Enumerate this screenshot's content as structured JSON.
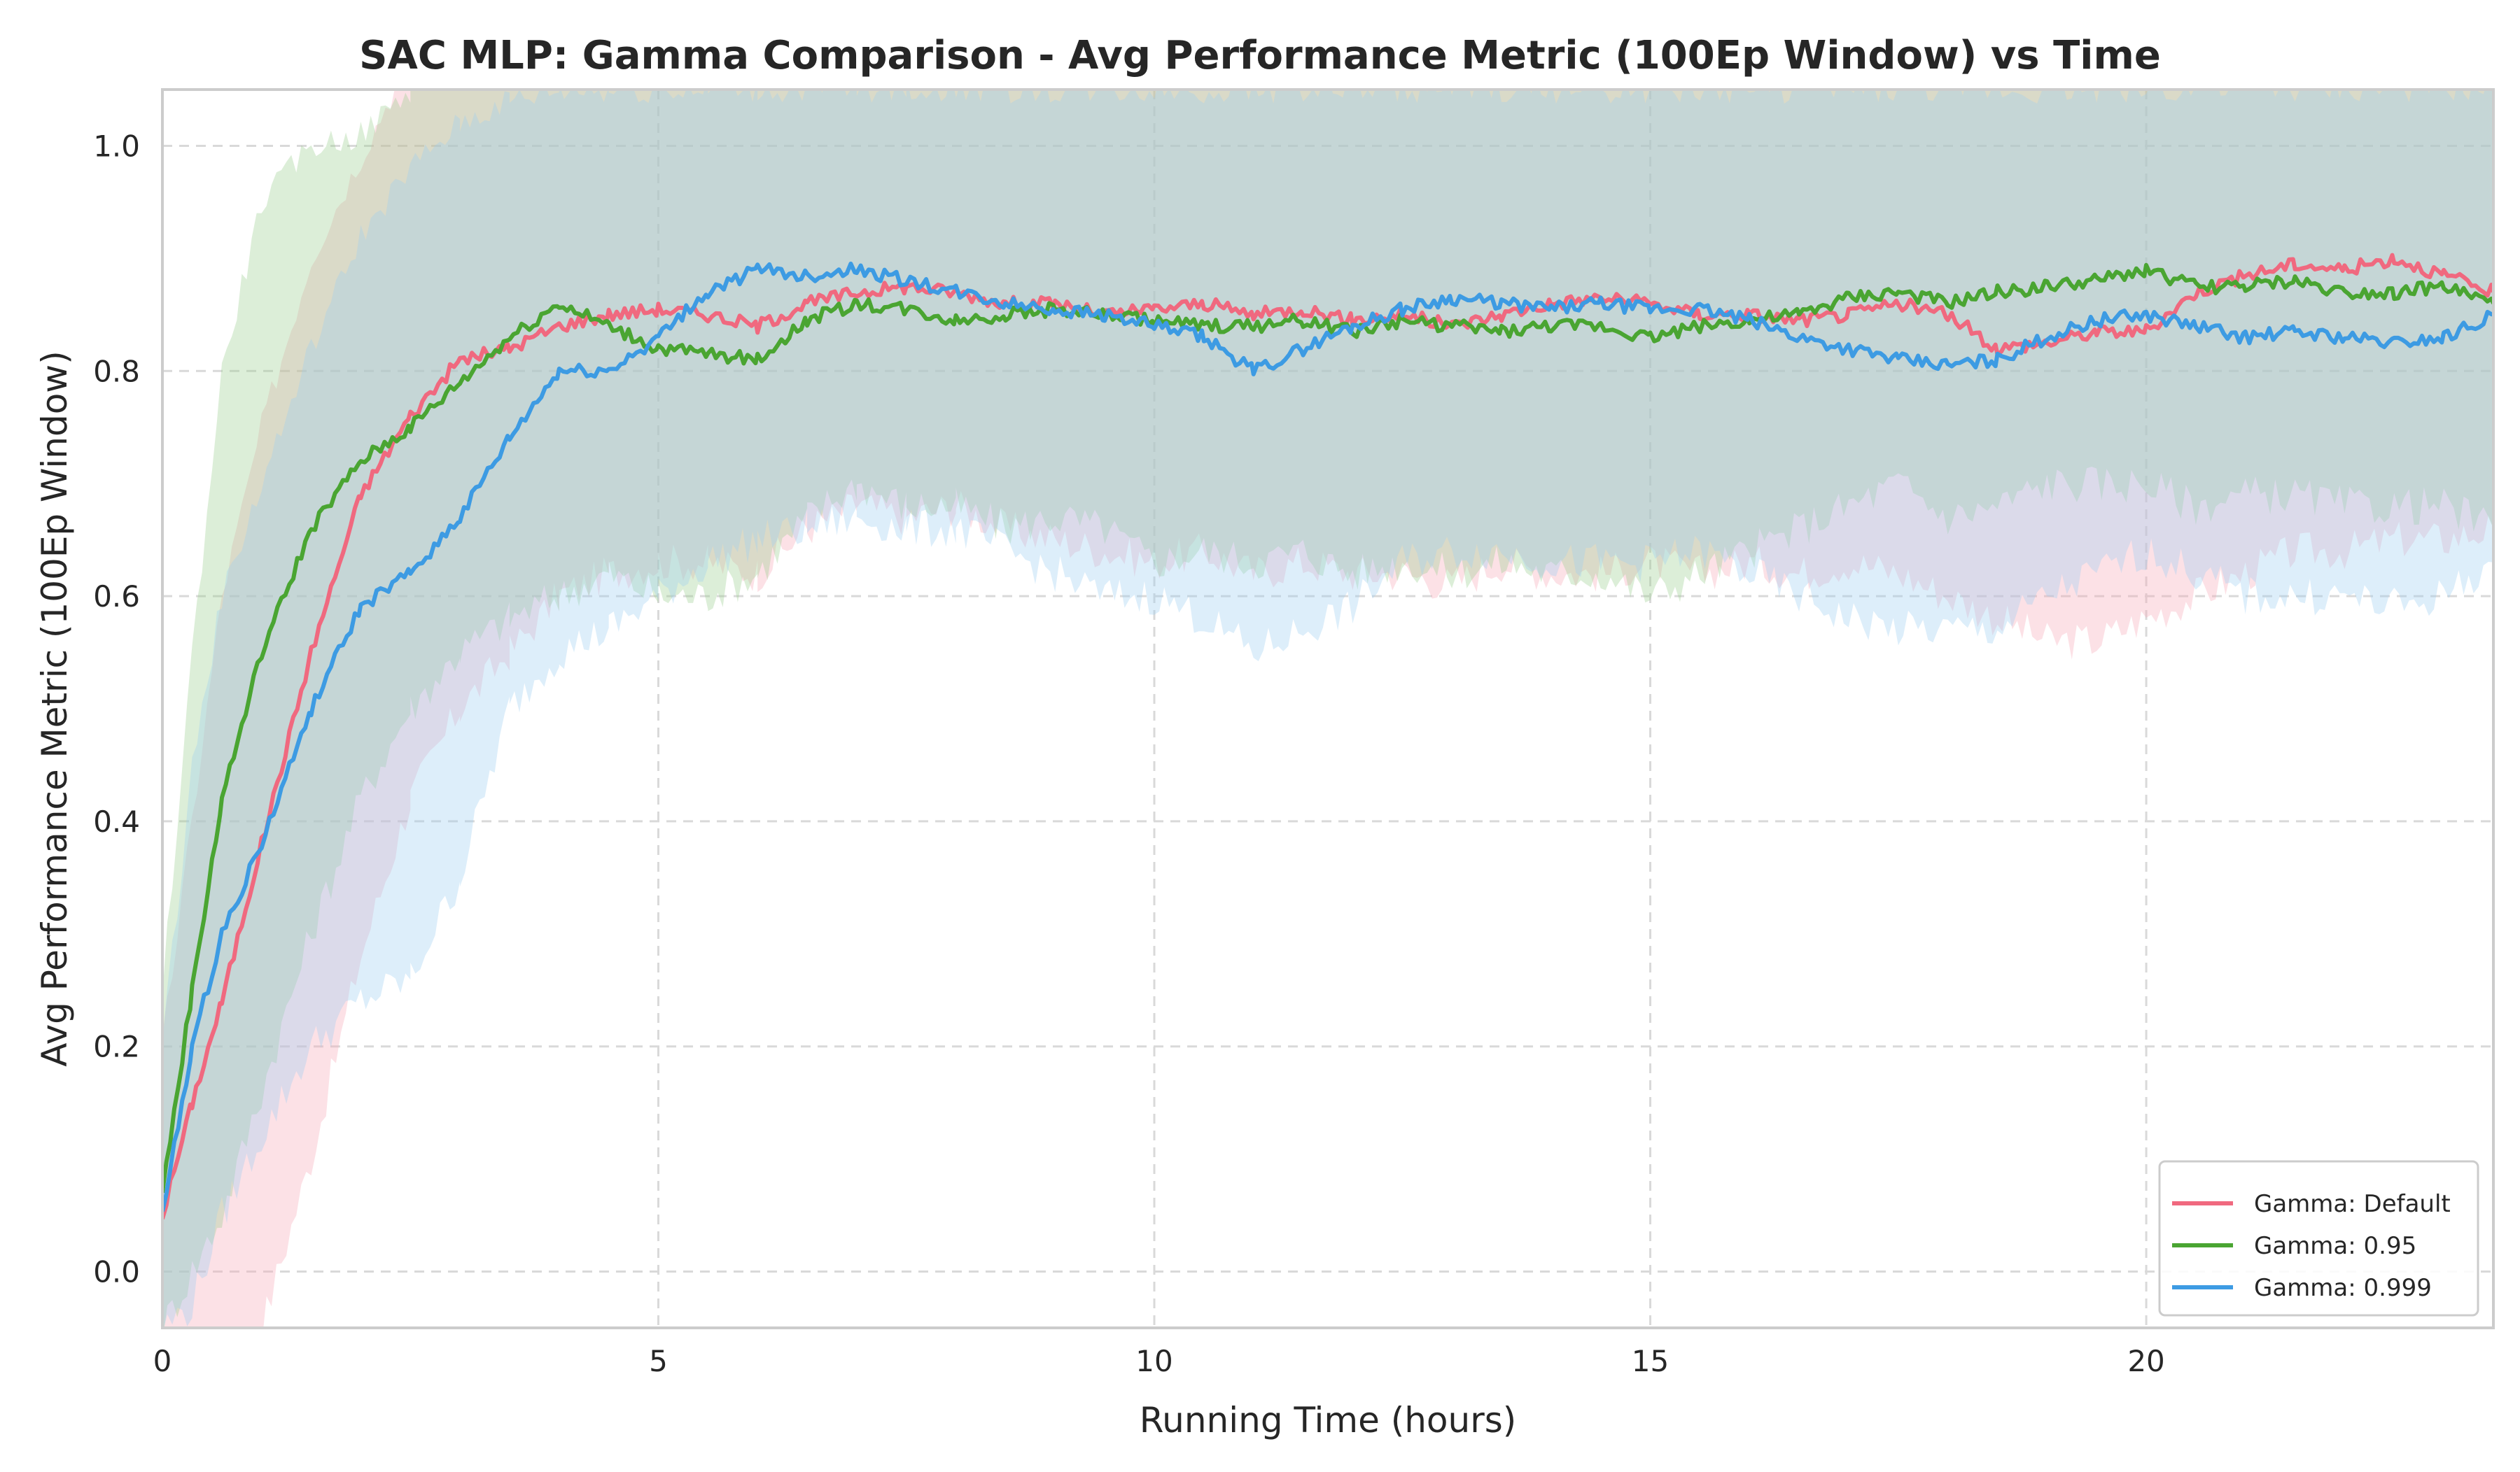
{
  "chart_data": {
    "type": "line",
    "title": "SAC MLP: Gamma Comparison - Avg Performance Metric (100Ep Window) vs Time",
    "xlabel": "Running Time (hours)",
    "ylabel": "Avg Performance Metric (100Ep Window)",
    "xlim": [
      0,
      23.5
    ],
    "ylim": [
      -0.05,
      1.05
    ],
    "xticks": [
      0,
      5,
      10,
      15,
      20
    ],
    "yticks": [
      0.0,
      0.2,
      0.4,
      0.6,
      0.8,
      1.0
    ],
    "xtick_labels": [
      "0",
      "5",
      "10",
      "15",
      "20"
    ],
    "ytick_labels": [
      "0.0",
      "0.2",
      "0.4",
      "0.6",
      "0.8",
      "1.0"
    ],
    "grid": true,
    "legend_position": "lower-right",
    "series": [
      {
        "name": "Gamma: Default",
        "color": "#f0697f",
        "band_color": "#f7a8b8",
        "x": [
          0,
          0.3,
          0.6,
          1.0,
          1.5,
          2.0,
          2.5,
          3.0,
          3.5,
          4.0,
          4.5,
          5.0,
          5.5,
          6.0,
          6.5,
          7.0,
          7.5,
          8.0,
          8.5,
          9.0,
          9.5,
          10.0,
          10.5,
          11.0,
          11.5,
          12.0,
          12.5,
          13.0,
          13.5,
          14.0,
          14.5,
          15.0,
          15.5,
          16.0,
          16.5,
          17.0,
          17.5,
          18.0,
          18.5,
          19.0,
          19.5,
          20.0,
          20.5,
          21.0,
          21.5,
          22.0,
          22.5,
          23.0,
          23.5
        ],
        "y": [
          0.05,
          0.15,
          0.24,
          0.38,
          0.55,
          0.69,
          0.76,
          0.81,
          0.82,
          0.84,
          0.85,
          0.855,
          0.85,
          0.84,
          0.86,
          0.87,
          0.875,
          0.87,
          0.86,
          0.86,
          0.85,
          0.855,
          0.86,
          0.85,
          0.855,
          0.845,
          0.85,
          0.84,
          0.85,
          0.86,
          0.865,
          0.86,
          0.85,
          0.85,
          0.845,
          0.85,
          0.86,
          0.85,
          0.82,
          0.825,
          0.835,
          0.835,
          0.87,
          0.885,
          0.895,
          0.89,
          0.9,
          0.885,
          0.87
        ],
        "lower": [
          -0.1,
          -0.1,
          -0.08,
          -0.05,
          0.1,
          0.28,
          0.42,
          0.5,
          0.55,
          0.6,
          0.62,
          0.63,
          0.63,
          0.62,
          0.66,
          0.68,
          0.67,
          0.68,
          0.66,
          0.65,
          0.64,
          0.63,
          0.64,
          0.62,
          0.63,
          0.62,
          0.62,
          0.61,
          0.63,
          0.62,
          0.62,
          0.63,
          0.62,
          0.63,
          0.62,
          0.63,
          0.62,
          0.6,
          0.58,
          0.56,
          0.56,
          0.58,
          0.6,
          0.62,
          0.64,
          0.64,
          0.65,
          0.65,
          0.66
        ],
        "upper": [
          0.2,
          0.4,
          0.6,
          0.75,
          0.9,
          0.99,
          1.08,
          1.1,
          1.1,
          1.1,
          1.1,
          1.1,
          1.1,
          1.1,
          1.1,
          1.1,
          1.1,
          1.1,
          1.1,
          1.1,
          1.1,
          1.1,
          1.1,
          1.1,
          1.1,
          1.1,
          1.1,
          1.1,
          1.1,
          1.1,
          1.1,
          1.1,
          1.1,
          1.1,
          1.1,
          1.1,
          1.1,
          1.1,
          1.1,
          1.1,
          1.1,
          1.1,
          1.1,
          1.1,
          1.1,
          1.1,
          1.1,
          1.1,
          1.1
        ]
      },
      {
        "name": "Gamma: 0.95",
        "color": "#4aa532",
        "band_color": "#9ccf90",
        "x": [
          0,
          0.3,
          0.6,
          1.0,
          1.5,
          2.0,
          2.5,
          3.0,
          3.5,
          4.0,
          4.5,
          5.0,
          5.5,
          6.0,
          6.5,
          7.0,
          7.5,
          8.0,
          8.5,
          9.0,
          9.5,
          10.0,
          10.5,
          11.0,
          11.5,
          12.0,
          12.5,
          13.0,
          13.5,
          14.0,
          14.5,
          15.0,
          15.5,
          16.0,
          16.5,
          17.0,
          17.5,
          18.0,
          18.5,
          19.0,
          19.5,
          20.0,
          20.5,
          21.0,
          21.5,
          22.0,
          22.5,
          23.0,
          23.5
        ],
        "y": [
          0.07,
          0.25,
          0.42,
          0.55,
          0.66,
          0.72,
          0.75,
          0.79,
          0.83,
          0.86,
          0.84,
          0.82,
          0.815,
          0.81,
          0.845,
          0.86,
          0.855,
          0.845,
          0.85,
          0.855,
          0.85,
          0.845,
          0.84,
          0.84,
          0.845,
          0.835,
          0.845,
          0.84,
          0.835,
          0.84,
          0.84,
          0.83,
          0.84,
          0.845,
          0.85,
          0.865,
          0.87,
          0.86,
          0.87,
          0.875,
          0.88,
          0.89,
          0.875,
          0.875,
          0.88,
          0.87,
          0.87,
          0.875,
          0.86
        ],
        "lower": [
          -0.05,
          0.0,
          0.05,
          0.16,
          0.3,
          0.42,
          0.5,
          0.55,
          0.58,
          0.6,
          0.62,
          0.6,
          0.6,
          0.62,
          0.67,
          0.7,
          0.68,
          0.68,
          0.66,
          0.67,
          0.66,
          0.63,
          0.64,
          0.63,
          0.64,
          0.62,
          0.63,
          0.62,
          0.63,
          0.62,
          0.62,
          0.6,
          0.62,
          0.64,
          0.66,
          0.68,
          0.7,
          0.67,
          0.68,
          0.7,
          0.7,
          0.7,
          0.68,
          0.69,
          0.69,
          0.68,
          0.68,
          0.68,
          0.66
        ],
        "upper": [
          0.25,
          0.55,
          0.8,
          0.95,
          1.0,
          1.01,
          1.05,
          1.08,
          1.1,
          1.1,
          1.1,
          1.1,
          1.1,
          1.1,
          1.1,
          1.1,
          1.1,
          1.1,
          1.1,
          1.1,
          1.1,
          1.1,
          1.1,
          1.1,
          1.1,
          1.1,
          1.1,
          1.1,
          1.1,
          1.1,
          1.1,
          1.1,
          1.1,
          1.1,
          1.1,
          1.1,
          1.1,
          1.1,
          1.1,
          1.1,
          1.1,
          1.1,
          1.1,
          1.1,
          1.1,
          1.1,
          1.1,
          1.1,
          1.1
        ]
      },
      {
        "name": "Gamma: 0.999",
        "color": "#3d9be3",
        "band_color": "#9fcdf0",
        "x": [
          0,
          0.3,
          0.6,
          1.0,
          1.5,
          2.0,
          2.5,
          3.0,
          3.5,
          4.0,
          4.5,
          5.0,
          5.5,
          6.0,
          6.5,
          7.0,
          7.5,
          8.0,
          8.5,
          9.0,
          9.5,
          10.0,
          10.5,
          11.0,
          11.5,
          12.0,
          12.5,
          13.0,
          13.5,
          14.0,
          14.5,
          15.0,
          15.5,
          16.0,
          16.5,
          17.0,
          17.5,
          18.0,
          18.5,
          19.0,
          19.5,
          20.0,
          20.5,
          21.0,
          21.5,
          22.0,
          22.5,
          23.0,
          23.5
        ],
        "y": [
          0.05,
          0.2,
          0.3,
          0.38,
          0.5,
          0.59,
          0.62,
          0.67,
          0.74,
          0.8,
          0.8,
          0.83,
          0.87,
          0.89,
          0.885,
          0.89,
          0.88,
          0.87,
          0.86,
          0.855,
          0.85,
          0.84,
          0.83,
          0.8,
          0.82,
          0.84,
          0.855,
          0.865,
          0.86,
          0.855,
          0.86,
          0.855,
          0.855,
          0.845,
          0.83,
          0.82,
          0.81,
          0.805,
          0.81,
          0.83,
          0.845,
          0.85,
          0.84,
          0.83,
          0.835,
          0.83,
          0.825,
          0.83,
          0.85
        ],
        "lower": [
          -0.05,
          -0.03,
          0.05,
          0.12,
          0.2,
          0.24,
          0.26,
          0.35,
          0.5,
          0.55,
          0.57,
          0.6,
          0.63,
          0.65,
          0.66,
          0.67,
          0.66,
          0.66,
          0.64,
          0.62,
          0.6,
          0.6,
          0.58,
          0.55,
          0.57,
          0.59,
          0.63,
          0.64,
          0.64,
          0.63,
          0.63,
          0.63,
          0.64,
          0.62,
          0.6,
          0.58,
          0.57,
          0.57,
          0.57,
          0.6,
          0.62,
          0.64,
          0.62,
          0.6,
          0.6,
          0.6,
          0.59,
          0.6,
          0.63
        ],
        "upper": [
          0.2,
          0.45,
          0.6,
          0.7,
          0.82,
          0.92,
          0.98,
          1.02,
          1.04,
          1.05,
          1.05,
          1.05,
          1.05,
          1.05,
          1.05,
          1.05,
          1.05,
          1.05,
          1.05,
          1.05,
          1.05,
          1.05,
          1.05,
          1.05,
          1.05,
          1.05,
          1.05,
          1.05,
          1.05,
          1.05,
          1.05,
          1.05,
          1.05,
          1.05,
          1.05,
          1.05,
          1.05,
          1.05,
          1.05,
          1.05,
          1.05,
          1.05,
          1.05,
          1.05,
          1.05,
          1.05,
          1.05,
          1.05,
          1.05
        ]
      }
    ]
  }
}
